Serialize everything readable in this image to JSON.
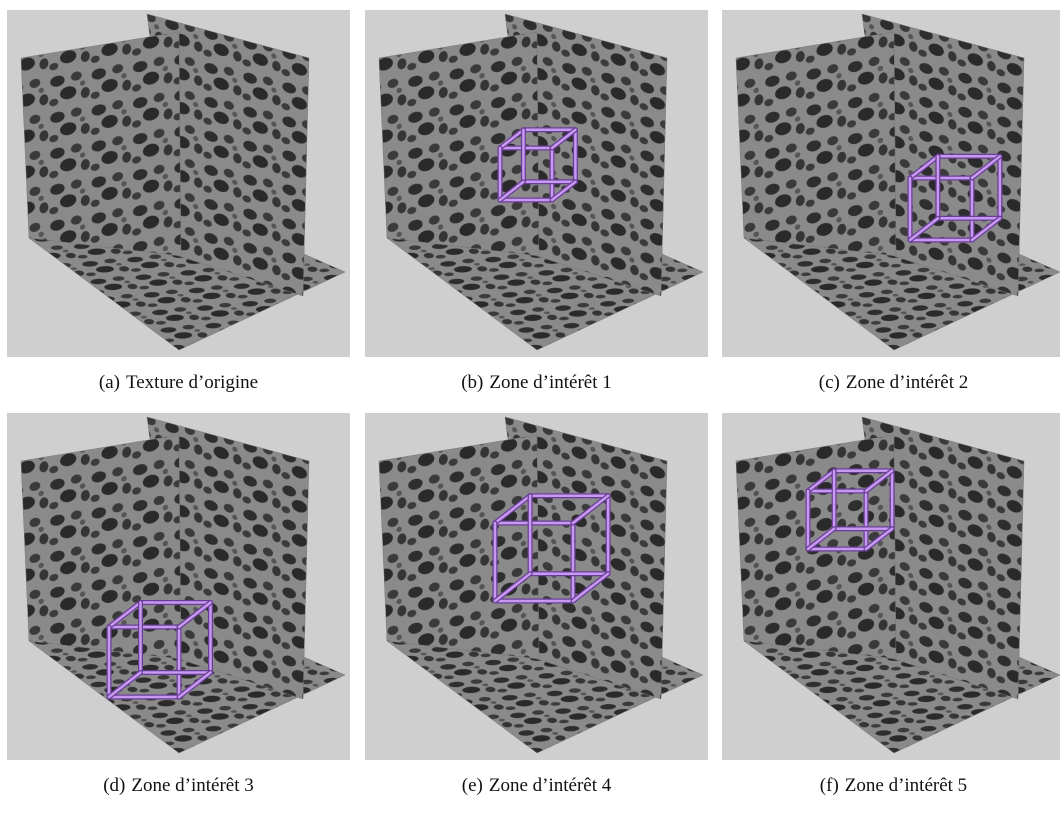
{
  "figure": {
    "panels": [
      {
        "label": "(a)",
        "caption": "Texture d’origine"
      },
      {
        "label": "(b)",
        "caption": "Zone d’intérêt 1"
      },
      {
        "label": "(c)",
        "caption": "Zone d’intérêt 2"
      },
      {
        "label": "(d)",
        "caption": "Zone d’intérêt 3"
      },
      {
        "label": "(e)",
        "caption": "Zone d’intérêt 4"
      },
      {
        "label": "(f)",
        "caption": "Zone d’intérêt 5"
      }
    ]
  }
}
